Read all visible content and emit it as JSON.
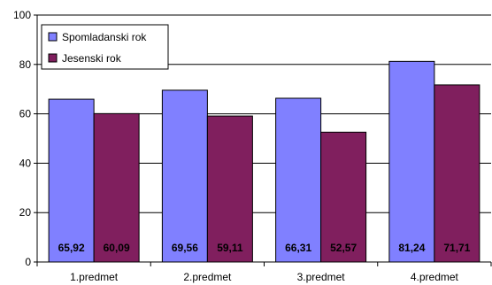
{
  "chart_data": {
    "type": "bar",
    "categories": [
      "1.predmet",
      "2.predmet",
      "3.predmet",
      "4.predmet"
    ],
    "series": [
      {
        "name": "Spomladanski rok",
        "values": [
          65.92,
          69.56,
          66.31,
          81.24
        ],
        "value_labels": [
          "65,92",
          "69,56",
          "66,31",
          "81,24"
        ],
        "color": "#8080ff"
      },
      {
        "name": "Jesenski rok",
        "values": [
          60.09,
          59.11,
          52.57,
          71.71
        ],
        "value_labels": [
          "60,09",
          "59,11",
          "52,57",
          "71,71"
        ],
        "color": "#801f5e"
      }
    ],
    "ylim": [
      0,
      100
    ],
    "yticks": [
      0,
      20,
      40,
      60,
      80,
      100
    ],
    "grid": true,
    "legend": "top-left",
    "title": "",
    "xlabel": "",
    "ylabel": ""
  }
}
